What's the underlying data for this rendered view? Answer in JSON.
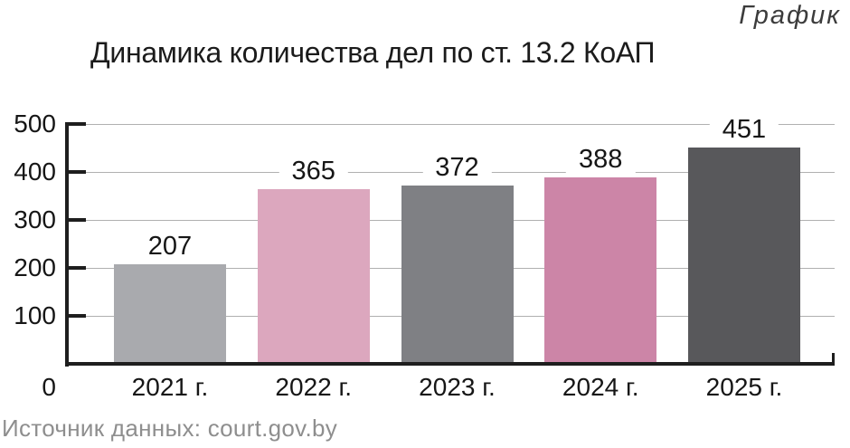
{
  "page": {
    "kind_label": "График",
    "source_caption": "Источник данных: court.gov.by"
  },
  "chart_data": {
    "type": "bar",
    "title": "Динамика количества дел по ст. 13.2 КоАП",
    "categories": [
      "2021 г.",
      "2022 г.",
      "2023 г.",
      "2024 г.",
      "2025 г."
    ],
    "values": [
      207,
      365,
      372,
      388,
      451
    ],
    "bar_colors": [
      "#a9aaae",
      "#dca7be",
      "#7f8084",
      "#cc85a7",
      "#58585b"
    ],
    "xlabel": "",
    "ylabel": "",
    "ylim": [
      0,
      500
    ],
    "y_ticks": [
      500,
      400,
      300,
      200,
      100
    ],
    "origin_label": "0",
    "grid": "horizontal-gridlines",
    "legend_position": "none",
    "value_labels": "above-bars",
    "source": "court.gov.by"
  },
  "colors": {
    "axis": "#1e1e1e",
    "gridline": "#b0b0b0",
    "text": "#161616",
    "source_text": "#8e8e8e",
    "background": "#ffffff"
  }
}
